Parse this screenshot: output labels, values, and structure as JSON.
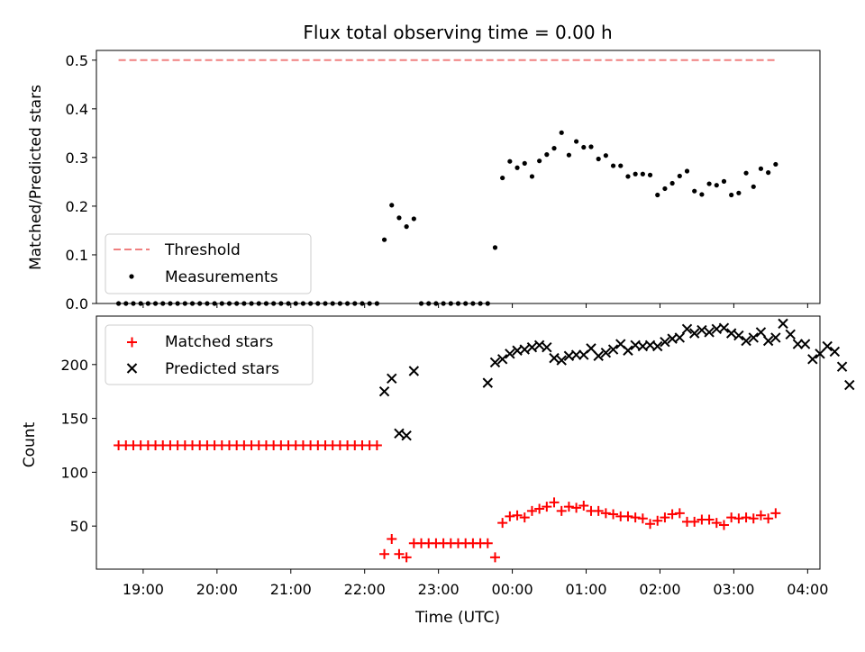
{
  "chart_data": [
    {
      "type": "scatter",
      "title": "Flux total observing time = 0.00 h",
      "xlabel": "",
      "ylabel": "Matched/Predicted stars",
      "xlim": [
        -0.3,
        9.5
      ],
      "ylim": [
        0,
        0.52
      ],
      "xticks": [
        0.3333,
        1.3333,
        2.3333,
        3.3333,
        4.3333,
        5.3333,
        6.3333,
        7.3333,
        8.3333,
        9.3333
      ],
      "yticks": [
        0,
        0.1,
        0.2,
        0.3,
        0.4,
        0.5
      ],
      "ytick_labels": [
        "0.0",
        "0.1",
        "0.2",
        "0.3",
        "0.4",
        "0.5"
      ],
      "legend_position": "lower-left",
      "threshold": {
        "name": "Threshold",
        "value": 0.5,
        "x_range": [
          0.0,
          8.9
        ],
        "color": "#f08080"
      },
      "series": [
        {
          "name": "Measurements",
          "color": "#000000",
          "marker": "dot",
          "x": [
            0.0,
            0.1,
            0.2,
            0.3,
            0.4,
            0.5,
            0.6,
            0.7,
            0.8,
            0.9,
            1.0,
            1.1,
            1.2,
            1.3,
            1.4,
            1.5,
            1.6,
            1.7,
            1.8,
            1.9,
            2.0,
            2.1,
            2.2,
            2.3,
            2.4,
            2.5,
            2.6,
            2.7,
            2.8,
            2.9,
            3.0,
            3.1,
            3.2,
            3.3,
            3.4,
            3.5,
            3.6,
            3.7,
            3.8,
            3.9,
            4.0,
            4.1,
            4.2,
            4.3,
            4.4,
            4.5,
            4.6,
            4.7,
            4.8,
            4.9,
            5.0,
            5.1,
            5.2,
            5.3,
            5.4,
            5.5,
            5.6,
            5.7,
            5.8,
            5.9,
            6.0,
            6.1,
            6.2,
            6.3,
            6.4,
            6.5,
            6.6,
            6.7,
            6.8,
            6.9,
            7.0,
            7.1,
            7.2,
            7.3,
            7.4,
            7.5,
            7.6,
            7.7,
            7.8,
            7.9,
            8.0,
            8.1,
            8.2,
            8.3,
            8.4,
            8.5,
            8.6,
            8.7,
            8.8,
            8.9
          ],
          "y": [
            0,
            0,
            0,
            0,
            0,
            0,
            0,
            0,
            0,
            0,
            0,
            0,
            0,
            0,
            0,
            0,
            0,
            0,
            0,
            0,
            0,
            0,
            0,
            0,
            0,
            0,
            0,
            0,
            0,
            0,
            0,
            0,
            0,
            0,
            0,
            0,
            0.131,
            0.202,
            0.176,
            0.158,
            0.174,
            0,
            0,
            0,
            0,
            0,
            0,
            0,
            0,
            0,
            0,
            0.115,
            0.258,
            0.292,
            0.279,
            0.288,
            0.261,
            0.293,
            0.306,
            0.319,
            0.351,
            0.305,
            0.333,
            0.321,
            0.322,
            0.297,
            0.304,
            0.283,
            0.283,
            0.261,
            0.266,
            0.266,
            0.264,
            0.223,
            0.236,
            0.247,
            0.262,
            0.272,
            0.231,
            0.224,
            0.246,
            0.243,
            0.251,
            0.223,
            0.227,
            0.268,
            0.24,
            0.277,
            0.269,
            0.286
          ]
        }
      ]
    },
    {
      "type": "scatter",
      "title": "",
      "xlabel": "Time (UTC)",
      "ylabel": "Count",
      "xlim": [
        -0.3,
        9.5
      ],
      "ylim": [
        10,
        245
      ],
      "xticks": [
        0.3333,
        1.3333,
        2.3333,
        3.3333,
        4.3333,
        5.3333,
        6.3333,
        7.3333,
        8.3333,
        9.3333
      ],
      "xtick_labels": [
        "19:00",
        "20:00",
        "21:00",
        "22:00",
        "23:00",
        "00:00",
        "01:00",
        "02:00",
        "03:00",
        "04:00"
      ],
      "yticks": [
        50,
        100,
        150,
        200
      ],
      "legend_position": "upper-left",
      "series": [
        {
          "name": "Matched stars",
          "color": "#ff0000",
          "marker": "plus",
          "x": [
            0.0,
            0.1,
            0.2,
            0.3,
            0.4,
            0.5,
            0.6,
            0.7,
            0.8,
            0.9,
            1.0,
            1.1,
            1.2,
            1.3,
            1.4,
            1.5,
            1.6,
            1.7,
            1.8,
            1.9,
            2.0,
            2.1,
            2.2,
            2.3,
            2.4,
            2.5,
            2.6,
            2.7,
            2.8,
            2.9,
            3.0,
            3.1,
            3.2,
            3.3,
            3.4,
            3.5,
            3.6,
            3.7,
            3.8,
            3.9,
            4.0,
            4.1,
            4.2,
            4.3,
            4.4,
            4.5,
            4.6,
            4.7,
            4.8,
            4.9,
            5.0,
            5.1,
            5.2,
            5.3,
            5.4,
            5.5,
            5.6,
            5.7,
            5.8,
            5.9,
            6.0,
            6.1,
            6.2,
            6.3,
            6.4,
            6.5,
            6.6,
            6.7,
            6.8,
            6.9,
            7.0,
            7.1,
            7.2,
            7.3,
            7.4,
            7.5,
            7.6,
            7.7,
            7.8,
            7.9,
            8.0,
            8.1,
            8.2,
            8.3,
            8.4,
            8.5,
            8.6,
            8.7,
            8.8,
            8.9
          ],
          "y": [
            125,
            125,
            125,
            125,
            125,
            125,
            125,
            125,
            125,
            125,
            125,
            125,
            125,
            125,
            125,
            125,
            125,
            125,
            125,
            125,
            125,
            125,
            125,
            125,
            125,
            125,
            125,
            125,
            125,
            125,
            125,
            125,
            125,
            125,
            125,
            125,
            24,
            38,
            24,
            21,
            34,
            34,
            34,
            34,
            34,
            34,
            34,
            34,
            34,
            34,
            34,
            21,
            53,
            59,
            60,
            58,
            64,
            66,
            68,
            72,
            64,
            68,
            67,
            69,
            64,
            64,
            62,
            61,
            59,
            59,
            58,
            57,
            52,
            55,
            58,
            61,
            62,
            54,
            54,
            56,
            56,
            53,
            51,
            58,
            57,
            58,
            57,
            60,
            57,
            62
          ]
        },
        {
          "name": "Predicted stars",
          "color": "#000000",
          "marker": "x",
          "x": [
            3.6,
            3.7,
            3.8,
            3.9,
            4.0,
            5.0,
            5.1,
            5.2,
            5.3,
            5.4,
            5.5,
            5.6,
            5.7,
            5.8,
            5.9,
            6.0,
            6.1,
            6.2,
            6.3,
            6.4,
            6.5,
            6.6,
            6.7,
            6.8,
            6.9,
            7.0,
            7.1,
            7.2,
            7.3,
            7.4,
            7.5,
            7.6,
            7.7,
            7.8,
            7.9,
            8.0,
            8.1,
            8.2,
            8.3,
            8.4,
            8.5,
            8.6,
            8.7,
            8.8,
            8.9,
            9.0,
            9.1,
            9.2,
            9.3,
            9.4,
            9.5,
            9.6,
            9.7,
            9.8,
            9.9
          ],
          "y": [
            175,
            187,
            136,
            134,
            194,
            183,
            202,
            205,
            210,
            213,
            214,
            216,
            218,
            216,
            206,
            204,
            208,
            209,
            209,
            215,
            208,
            211,
            214,
            219,
            213,
            218,
            217,
            218,
            217,
            221,
            224,
            225,
            233,
            229,
            232,
            230,
            233,
            234,
            229,
            227,
            222,
            225,
            230,
            222,
            225,
            238,
            228,
            219,
            219,
            205,
            210,
            217,
            212,
            198,
            181
          ]
        }
      ]
    }
  ]
}
